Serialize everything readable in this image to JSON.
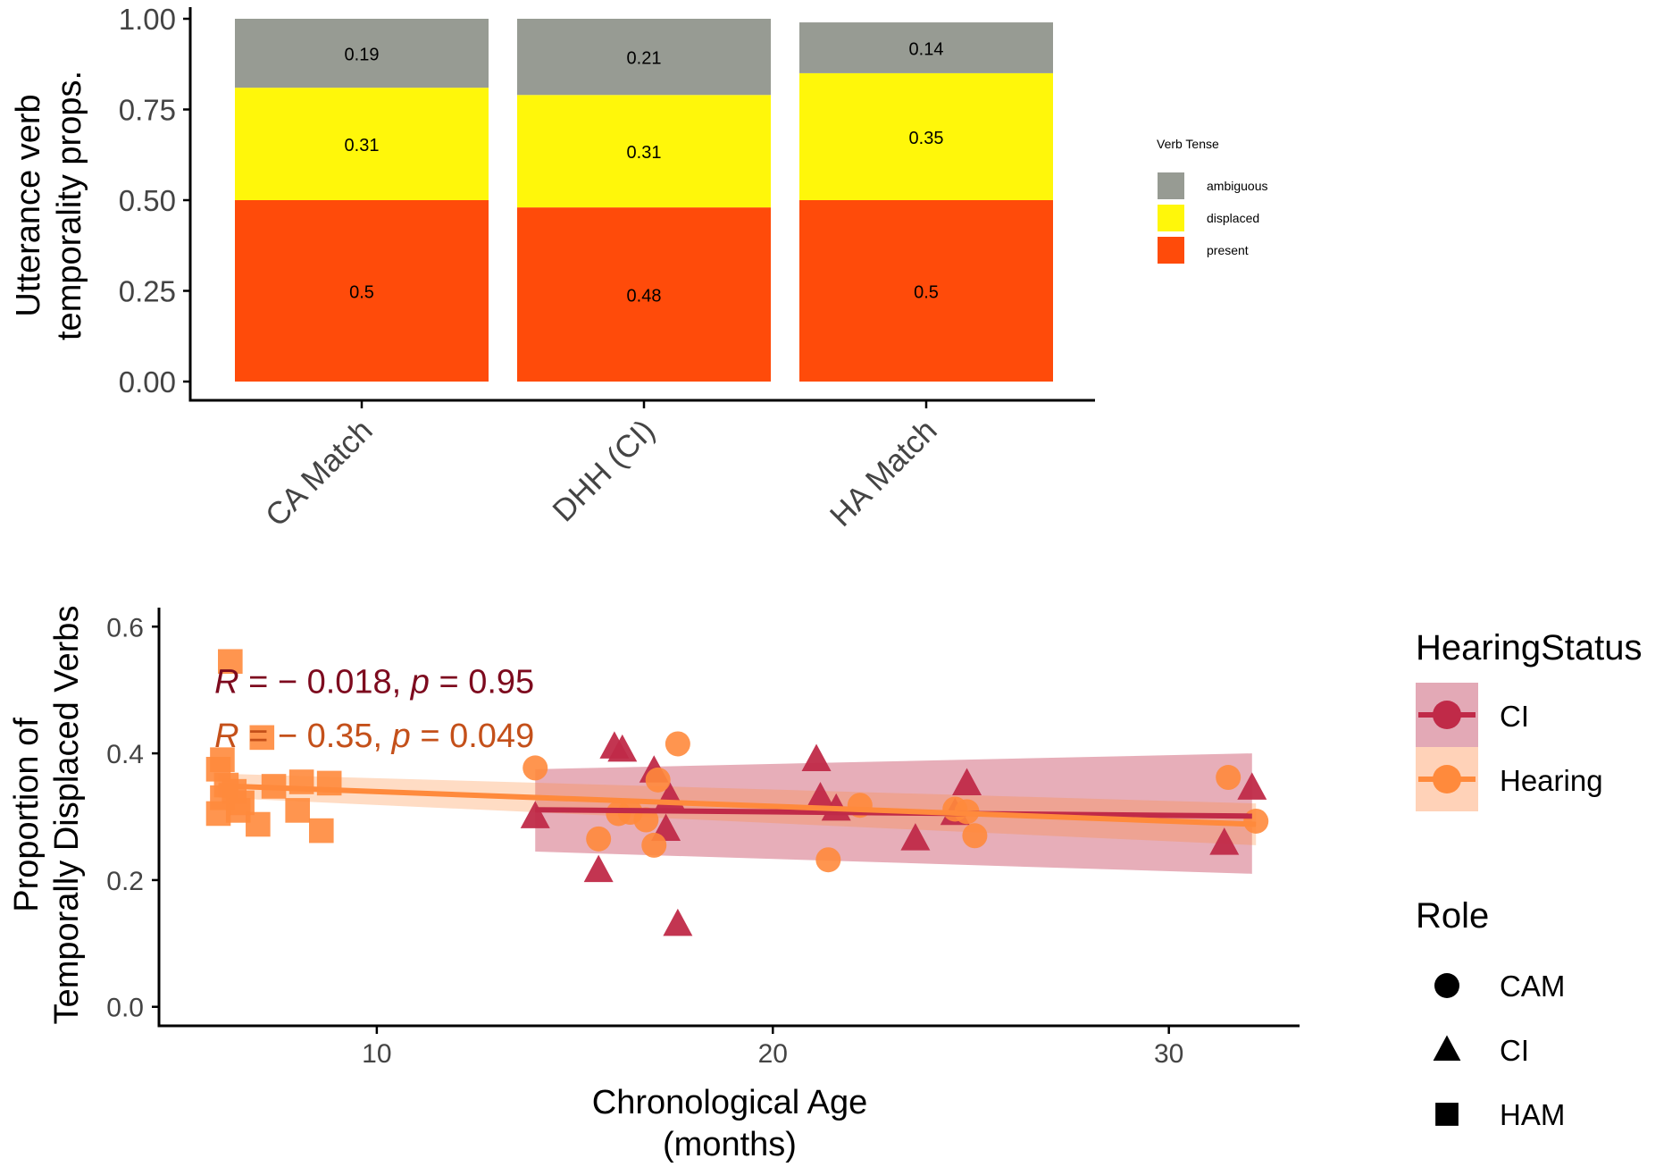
{
  "chart_data": [
    {
      "type": "bar",
      "stacked": true,
      "categories": [
        "CA Match",
        "DHH (CI)",
        "HA Match"
      ],
      "series": [
        {
          "name": "present",
          "values": [
            0.5,
            0.48,
            0.5
          ],
          "labels": [
            "0.5",
            "0.48",
            "0.5"
          ],
          "color": "#ff4b0a"
        },
        {
          "name": "displaced",
          "values": [
            0.31,
            0.31,
            0.35
          ],
          "labels": [
            "0.31",
            "0.31",
            "0.35"
          ],
          "color": "#fff70a"
        },
        {
          "name": "ambiguous",
          "values": [
            0.19,
            0.21,
            0.14
          ],
          "labels": [
            "0.19",
            "0.21",
            "0.14"
          ],
          "color": "#979b93"
        }
      ],
      "ylabel": [
        "Utterance verb",
        "temporality props."
      ],
      "ylim": [
        0,
        1
      ],
      "yticks": [
        0,
        0.25,
        0.5,
        0.75,
        1.0
      ],
      "yticklabels": [
        "0.00",
        "0.25",
        "0.50",
        "0.75",
        "1.00"
      ],
      "legend": {
        "title": "Verb Tense",
        "entries": [
          {
            "label": "ambiguous",
            "color": "#979b93"
          },
          {
            "label": "displaced",
            "color": "#fff70a"
          },
          {
            "label": "present",
            "color": "#ff4b0a"
          }
        ],
        "placement": "right"
      },
      "grid": false
    },
    {
      "type": "scatter",
      "xlabel": [
        "Chronological Age",
        "(months)"
      ],
      "ylabel": [
        "Proportion of",
        "Temporally Displaced Verbs"
      ],
      "xlim": [
        4.5,
        33.3
      ],
      "ylim": [
        -0.03,
        0.63
      ],
      "xticks": [
        10,
        20,
        30
      ],
      "xticklabels": [
        "10",
        "20",
        "30"
      ],
      "yticks": [
        0,
        0.2,
        0.4,
        0.6
      ],
      "yticklabels": [
        "0.0",
        "0.2",
        "0.4",
        "0.6"
      ],
      "grid": false,
      "annotations": [
        {
          "italic_r": "R",
          "text_mid": " = − 0.018, ",
          "italic_p": "p",
          "text_end": " = 0.95",
          "color": "#7d0a1e",
          "x": 5.9,
          "y": 0.495
        },
        {
          "italic_r": "R",
          "text_mid": " = − 0.35, ",
          "italic_p": "p",
          "text_end": " = 0.049",
          "color": "#c4501a",
          "x": 5.9,
          "y": 0.41
        }
      ],
      "series": [
        {
          "name": "CI",
          "color": "#c02a48",
          "shape": "triangle",
          "points": [
            [
              14.0,
              0.3
            ],
            [
              15.6,
              0.215
            ],
            [
              16.0,
              0.41
            ],
            [
              16.2,
              0.405
            ],
            [
              17.0,
              0.372
            ],
            [
              17.3,
              0.28
            ],
            [
              17.6,
              0.13
            ],
            [
              17.4,
              0.33
            ],
            [
              21.1,
              0.39
            ],
            [
              21.2,
              0.33
            ],
            [
              21.6,
              0.312
            ],
            [
              23.6,
              0.265
            ],
            [
              24.6,
              0.305
            ],
            [
              24.9,
              0.352
            ],
            [
              31.4,
              0.258
            ],
            [
              32.1,
              0.345
            ]
          ],
          "fit": {
            "x": [
              14.0,
              32.1
            ],
            "y": [
              0.311,
              0.301
            ],
            "band_lower": [
              0.245,
              0.21
            ],
            "band_upper": [
              0.375,
              0.4
            ]
          }
        },
        {
          "name": "Hearing",
          "color": "#ff8a3c",
          "role_points": {
            "CAM": [
              [
                14.0,
                0.377
              ],
              [
                15.6,
                0.265
              ],
              [
                16.1,
                0.305
              ],
              [
                16.4,
                0.307
              ],
              [
                16.8,
                0.295
              ],
              [
                17.0,
                0.255
              ],
              [
                17.1,
                0.358
              ],
              [
                17.6,
                0.415
              ],
              [
                21.4,
                0.232
              ],
              [
                22.2,
                0.318
              ],
              [
                24.6,
                0.312
              ],
              [
                24.9,
                0.308
              ],
              [
                25.1,
                0.27
              ],
              [
                31.5,
                0.362
              ],
              [
                32.2,
                0.293
              ]
            ],
            "HAM": [
              [
                6.0,
                0.375
              ],
              [
                6.1,
                0.39
              ],
              [
                6.3,
                0.545
              ],
              [
                6.0,
                0.305
              ],
              [
                6.1,
                0.33
              ],
              [
                6.2,
                0.35
              ],
              [
                6.4,
                0.34
              ],
              [
                6.5,
                0.31
              ],
              [
                6.6,
                0.322
              ],
              [
                7.0,
                0.288
              ],
              [
                7.1,
                0.425
              ],
              [
                7.4,
                0.348
              ],
              [
                8.0,
                0.31
              ],
              [
                8.1,
                0.355
              ],
              [
                8.6,
                0.278
              ],
              [
                8.8,
                0.353
              ]
            ]
          },
          "fit": {
            "x": [
              6.0,
              32.2
            ],
            "y": [
              0.349,
              0.288
            ],
            "band_lower": [
              0.33,
              0.255
            ],
            "band_upper": [
              0.368,
              0.321
            ]
          }
        }
      ],
      "legend": {
        "hearing_title": "HearingStatus",
        "hearing_entries": [
          {
            "label": "CI",
            "color": "#c02a48",
            "fill": "#e3a9b6"
          },
          {
            "label": "Hearing",
            "color": "#ff8a3c",
            "fill": "#ffd2b8"
          }
        ],
        "role_title": "Role",
        "role_entries": [
          {
            "label": "CAM",
            "shape": "circle"
          },
          {
            "label": "CI",
            "shape": "triangle"
          },
          {
            "label": "HAM",
            "shape": "square"
          }
        ],
        "placement": "right"
      }
    }
  ]
}
